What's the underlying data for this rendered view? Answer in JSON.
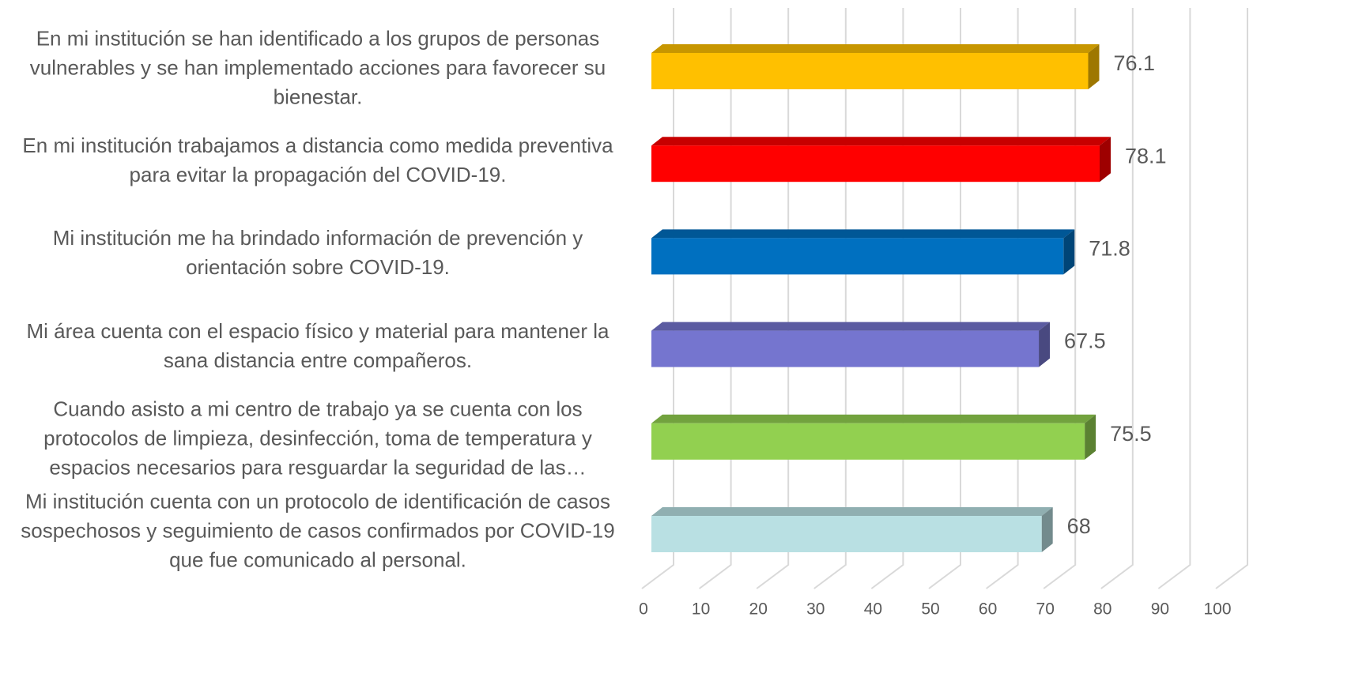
{
  "chart_data": {
    "type": "bar3d",
    "categories": [
      "En mi institución se han identificado a los grupos de personas vulnerables y se han implementado acciones para favorecer su bienestar.",
      "En mi institución trabajamos a distancia como medida preventiva para evitar la propagación del COVID-19.",
      "Mi institución me ha brindado información de prevención y orientación sobre COVID-19.",
      "Mi área cuenta con el espacio físico y material para mantener la sana distancia entre compañeros.",
      "Cuando asisto a mi centro de trabajo ya se cuenta con los protocolos de limpieza, desinfección, toma de temperatura y espacios necesarios para resguardar la seguridad de las…",
      "Mi institución cuenta con un protocolo de identificación de casos sospechosos y seguimiento de casos confirmados por COVID-19 que fue comunicado al personal."
    ],
    "values": [
      76.1,
      78.1,
      71.8,
      67.5,
      75.5,
      68
    ],
    "colors": [
      "#FFC000",
      "#FF0000",
      "#0070C0",
      "#7575CF",
      "#92D050",
      "#B9E0E3"
    ],
    "xlim": [
      0,
      100
    ],
    "xticks": [
      0,
      10,
      20,
      30,
      40,
      50,
      60,
      70,
      80,
      90,
      100
    ],
    "grid": true
  }
}
